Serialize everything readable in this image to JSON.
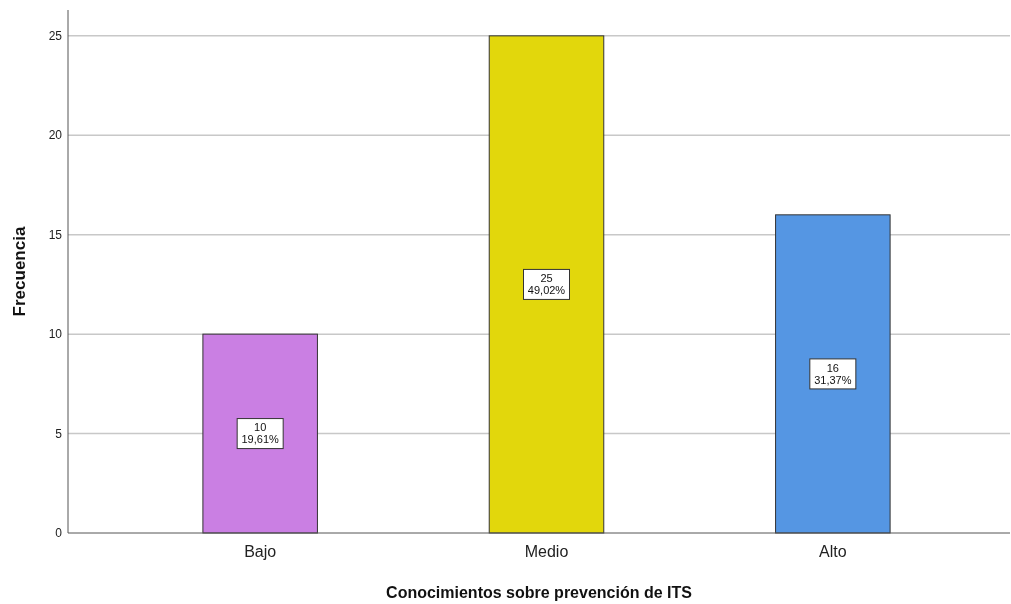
{
  "chart_data": {
    "type": "bar",
    "xlabel": "Conocimientos sobre prevención de ITS",
    "ylabel": "Frecuencia",
    "categories": [
      "Bajo",
      "Medio",
      "Alto"
    ],
    "values": [
      10,
      25,
      16
    ],
    "colors": [
      "#ca7fe3",
      "#e2d70c",
      "#5596e3"
    ],
    "value_labels": [
      "10\n19,61%",
      "25\n49,02%",
      "16\n31,37%"
    ],
    "ylim": [
      0,
      26.3
    ],
    "yticks": [
      0,
      5,
      10,
      15,
      20,
      25
    ],
    "grid": "y"
  }
}
